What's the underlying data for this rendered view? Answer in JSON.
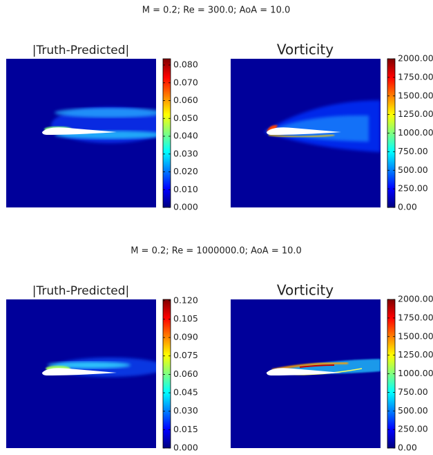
{
  "chart_data": [
    {
      "type": "heatmap",
      "suptitle": "M = 0.2; Re = 300.0; AoA = 10.0",
      "title": "|Truth-Predicted|",
      "colormap": "jet",
      "clim": [
        0,
        0.0835
      ],
      "cticks": [
        {
          "value": 0,
          "label": "0.000"
        },
        {
          "value": 0.01,
          "label": "0.010"
        },
        {
          "value": 0.02,
          "label": "0.020"
        },
        {
          "value": 0.03,
          "label": "0.030"
        },
        {
          "value": 0.04,
          "label": "0.040"
        },
        {
          "value": 0.05,
          "label": "0.050"
        },
        {
          "value": 0.06,
          "label": "0.060"
        },
        {
          "value": 0.07,
          "label": "0.070"
        },
        {
          "value": 0.08,
          "label": "0.080"
        }
      ]
    },
    {
      "type": "heatmap",
      "title": "Vorticity",
      "colormap": "jet",
      "clim": [
        0,
        2000
      ],
      "cticks": [
        {
          "value": 0,
          "label": "0.00"
        },
        {
          "value": 250,
          "label": "250.00"
        },
        {
          "value": 500,
          "label": "500.00"
        },
        {
          "value": 750,
          "label": "750.00"
        },
        {
          "value": 1000,
          "label": "1000.00"
        },
        {
          "value": 1250,
          "label": "1250.00"
        },
        {
          "value": 1500,
          "label": "1500.00"
        },
        {
          "value": 1750,
          "label": "1750.00"
        },
        {
          "value": 2000,
          "label": "2000.00"
        }
      ]
    },
    {
      "type": "heatmap",
      "suptitle": "M = 0.2; Re = 1000000.0; AoA = 10.0",
      "title": "|Truth-Predicted|",
      "colormap": "jet",
      "clim": [
        0,
        0.121
      ],
      "cticks": [
        {
          "value": 0,
          "label": "0.000"
        },
        {
          "value": 0.015,
          "label": "0.015"
        },
        {
          "value": 0.03,
          "label": "0.030"
        },
        {
          "value": 0.045,
          "label": "0.045"
        },
        {
          "value": 0.06,
          "label": "0.060"
        },
        {
          "value": 0.075,
          "label": "0.075"
        },
        {
          "value": 0.09,
          "label": "0.090"
        },
        {
          "value": 0.105,
          "label": "0.105"
        },
        {
          "value": 0.12,
          "label": "0.120"
        }
      ]
    },
    {
      "type": "heatmap",
      "title": "Vorticity",
      "colormap": "jet",
      "clim": [
        0,
        2000
      ],
      "cticks": [
        {
          "value": 0,
          "label": "0.00"
        },
        {
          "value": 250,
          "label": "250.00"
        },
        {
          "value": 500,
          "label": "500.00"
        },
        {
          "value": 750,
          "label": "750.00"
        },
        {
          "value": 1000,
          "label": "1000.00"
        },
        {
          "value": 1250,
          "label": "1250.00"
        },
        {
          "value": 1500,
          "label": "1500.00"
        },
        {
          "value": 1750,
          "label": "1750.00"
        },
        {
          "value": 2000,
          "label": "2000.00"
        }
      ]
    }
  ]
}
